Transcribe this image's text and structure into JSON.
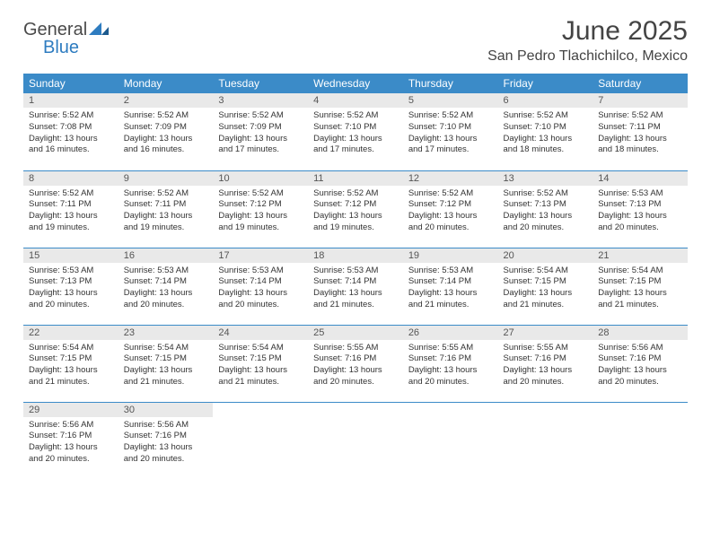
{
  "logo": {
    "text1": "General",
    "text2": "Blue"
  },
  "title": "June 2025",
  "location": "San Pedro Tlachichilco, Mexico",
  "colors": {
    "header_bg": "#3b8bc8",
    "header_fg": "#ffffff",
    "daynum_bg": "#e9e9e9",
    "row_border": "#3b8bc8",
    "logo_blue": "#2e7cc0",
    "text": "#333333"
  },
  "weekdays": [
    "Sunday",
    "Monday",
    "Tuesday",
    "Wednesday",
    "Thursday",
    "Friday",
    "Saturday"
  ],
  "days": [
    {
      "n": "1",
      "sr": "Sunrise: 5:52 AM",
      "ss": "Sunset: 7:08 PM",
      "dl1": "Daylight: 13 hours",
      "dl2": "and 16 minutes."
    },
    {
      "n": "2",
      "sr": "Sunrise: 5:52 AM",
      "ss": "Sunset: 7:09 PM",
      "dl1": "Daylight: 13 hours",
      "dl2": "and 16 minutes."
    },
    {
      "n": "3",
      "sr": "Sunrise: 5:52 AM",
      "ss": "Sunset: 7:09 PM",
      "dl1": "Daylight: 13 hours",
      "dl2": "and 17 minutes."
    },
    {
      "n": "4",
      "sr": "Sunrise: 5:52 AM",
      "ss": "Sunset: 7:10 PM",
      "dl1": "Daylight: 13 hours",
      "dl2": "and 17 minutes."
    },
    {
      "n": "5",
      "sr": "Sunrise: 5:52 AM",
      "ss": "Sunset: 7:10 PM",
      "dl1": "Daylight: 13 hours",
      "dl2": "and 17 minutes."
    },
    {
      "n": "6",
      "sr": "Sunrise: 5:52 AM",
      "ss": "Sunset: 7:10 PM",
      "dl1": "Daylight: 13 hours",
      "dl2": "and 18 minutes."
    },
    {
      "n": "7",
      "sr": "Sunrise: 5:52 AM",
      "ss": "Sunset: 7:11 PM",
      "dl1": "Daylight: 13 hours",
      "dl2": "and 18 minutes."
    },
    {
      "n": "8",
      "sr": "Sunrise: 5:52 AM",
      "ss": "Sunset: 7:11 PM",
      "dl1": "Daylight: 13 hours",
      "dl2": "and 19 minutes."
    },
    {
      "n": "9",
      "sr": "Sunrise: 5:52 AM",
      "ss": "Sunset: 7:11 PM",
      "dl1": "Daylight: 13 hours",
      "dl2": "and 19 minutes."
    },
    {
      "n": "10",
      "sr": "Sunrise: 5:52 AM",
      "ss": "Sunset: 7:12 PM",
      "dl1": "Daylight: 13 hours",
      "dl2": "and 19 minutes."
    },
    {
      "n": "11",
      "sr": "Sunrise: 5:52 AM",
      "ss": "Sunset: 7:12 PM",
      "dl1": "Daylight: 13 hours",
      "dl2": "and 19 minutes."
    },
    {
      "n": "12",
      "sr": "Sunrise: 5:52 AM",
      "ss": "Sunset: 7:12 PM",
      "dl1": "Daylight: 13 hours",
      "dl2": "and 20 minutes."
    },
    {
      "n": "13",
      "sr": "Sunrise: 5:52 AM",
      "ss": "Sunset: 7:13 PM",
      "dl1": "Daylight: 13 hours",
      "dl2": "and 20 minutes."
    },
    {
      "n": "14",
      "sr": "Sunrise: 5:53 AM",
      "ss": "Sunset: 7:13 PM",
      "dl1": "Daylight: 13 hours",
      "dl2": "and 20 minutes."
    },
    {
      "n": "15",
      "sr": "Sunrise: 5:53 AM",
      "ss": "Sunset: 7:13 PM",
      "dl1": "Daylight: 13 hours",
      "dl2": "and 20 minutes."
    },
    {
      "n": "16",
      "sr": "Sunrise: 5:53 AM",
      "ss": "Sunset: 7:14 PM",
      "dl1": "Daylight: 13 hours",
      "dl2": "and 20 minutes."
    },
    {
      "n": "17",
      "sr": "Sunrise: 5:53 AM",
      "ss": "Sunset: 7:14 PM",
      "dl1": "Daylight: 13 hours",
      "dl2": "and 20 minutes."
    },
    {
      "n": "18",
      "sr": "Sunrise: 5:53 AM",
      "ss": "Sunset: 7:14 PM",
      "dl1": "Daylight: 13 hours",
      "dl2": "and 21 minutes."
    },
    {
      "n": "19",
      "sr": "Sunrise: 5:53 AM",
      "ss": "Sunset: 7:14 PM",
      "dl1": "Daylight: 13 hours",
      "dl2": "and 21 minutes."
    },
    {
      "n": "20",
      "sr": "Sunrise: 5:54 AM",
      "ss": "Sunset: 7:15 PM",
      "dl1": "Daylight: 13 hours",
      "dl2": "and 21 minutes."
    },
    {
      "n": "21",
      "sr": "Sunrise: 5:54 AM",
      "ss": "Sunset: 7:15 PM",
      "dl1": "Daylight: 13 hours",
      "dl2": "and 21 minutes."
    },
    {
      "n": "22",
      "sr": "Sunrise: 5:54 AM",
      "ss": "Sunset: 7:15 PM",
      "dl1": "Daylight: 13 hours",
      "dl2": "and 21 minutes."
    },
    {
      "n": "23",
      "sr": "Sunrise: 5:54 AM",
      "ss": "Sunset: 7:15 PM",
      "dl1": "Daylight: 13 hours",
      "dl2": "and 21 minutes."
    },
    {
      "n": "24",
      "sr": "Sunrise: 5:54 AM",
      "ss": "Sunset: 7:15 PM",
      "dl1": "Daylight: 13 hours",
      "dl2": "and 21 minutes."
    },
    {
      "n": "25",
      "sr": "Sunrise: 5:55 AM",
      "ss": "Sunset: 7:16 PM",
      "dl1": "Daylight: 13 hours",
      "dl2": "and 20 minutes."
    },
    {
      "n": "26",
      "sr": "Sunrise: 5:55 AM",
      "ss": "Sunset: 7:16 PM",
      "dl1": "Daylight: 13 hours",
      "dl2": "and 20 minutes."
    },
    {
      "n": "27",
      "sr": "Sunrise: 5:55 AM",
      "ss": "Sunset: 7:16 PM",
      "dl1": "Daylight: 13 hours",
      "dl2": "and 20 minutes."
    },
    {
      "n": "28",
      "sr": "Sunrise: 5:56 AM",
      "ss": "Sunset: 7:16 PM",
      "dl1": "Daylight: 13 hours",
      "dl2": "and 20 minutes."
    },
    {
      "n": "29",
      "sr": "Sunrise: 5:56 AM",
      "ss": "Sunset: 7:16 PM",
      "dl1": "Daylight: 13 hours",
      "dl2": "and 20 minutes."
    },
    {
      "n": "30",
      "sr": "Sunrise: 5:56 AM",
      "ss": "Sunset: 7:16 PM",
      "dl1": "Daylight: 13 hours",
      "dl2": "and 20 minutes."
    }
  ]
}
